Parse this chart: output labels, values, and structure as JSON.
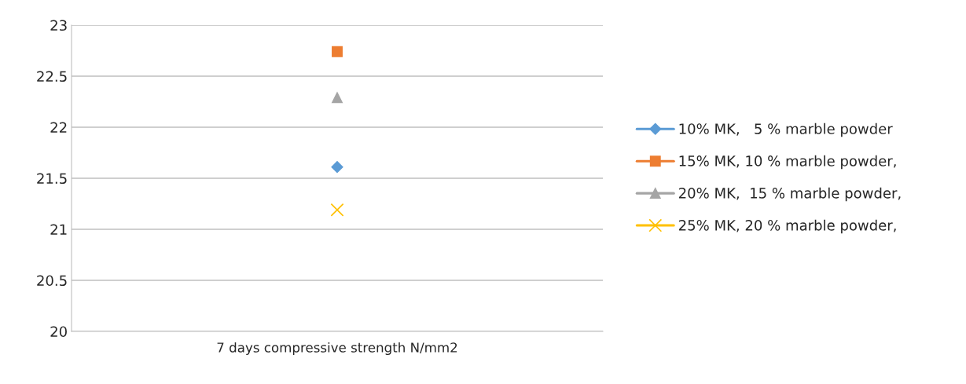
{
  "chart_data": {
    "type": "line",
    "categories": [
      "7 days compressive strength N/mm2"
    ],
    "series": [
      {
        "name": "10% MK,   5 % marble powder",
        "color": "#5b9bd5",
        "marker": "diamond",
        "values": [
          21.61
        ]
      },
      {
        "name": "15% MK, 10 % marble powder,",
        "color": "#ed7d31",
        "marker": "square",
        "values": [
          22.74
        ]
      },
      {
        "name": "20% MK,  15 % marble powder,",
        "color": "#a5a5a5",
        "marker": "triangle",
        "values": [
          22.29
        ]
      },
      {
        "name": "25% MK, 20 % marble powder,",
        "color": "#ffc000",
        "marker": "cross",
        "values": [
          21.19
        ]
      }
    ],
    "ylim": [
      20,
      23
    ],
    "yticks": [
      20,
      20.5,
      21,
      21.5,
      22,
      22.5,
      23
    ],
    "grid": "y",
    "legend": "right"
  }
}
